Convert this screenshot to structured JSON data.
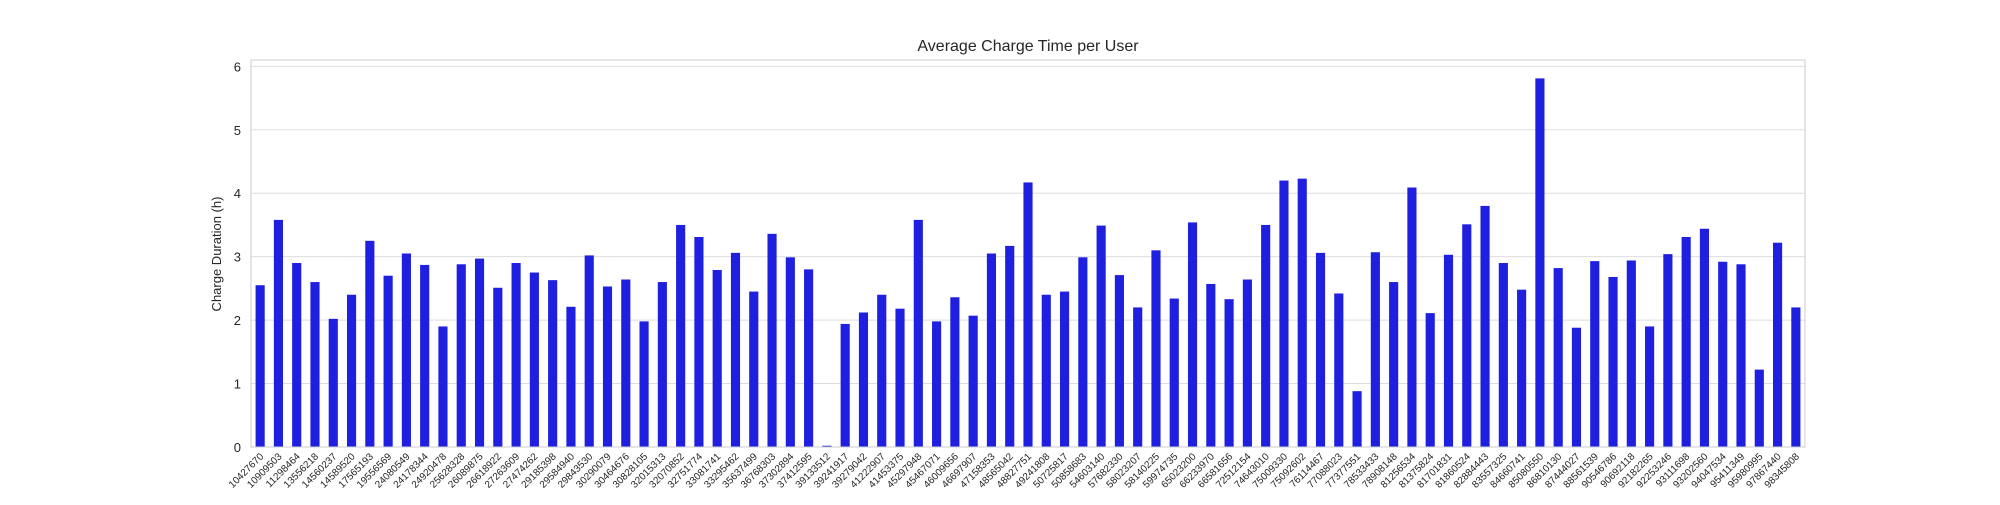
{
  "chart_data": {
    "type": "bar",
    "title": "Average Charge Time per User",
    "xlabel": "",
    "ylabel": "Charge Duration (h)",
    "ylim": [
      0,
      6.1
    ],
    "yticks": [
      0,
      1,
      2,
      3,
      4,
      5,
      6
    ],
    "bar_color": "#1f1fe0",
    "grid": true,
    "categories": [
      "10427670",
      "10909503",
      "11298464",
      "13556218",
      "14560237",
      "14589520",
      "17565193",
      "19556569",
      "24080549",
      "24178344",
      "24920478",
      "25628328",
      "26089875",
      "26618922",
      "27263609",
      "27474262",
      "29185398",
      "29584940",
      "29843530",
      "30290079",
      "30464676",
      "30828105",
      "32015313",
      "32070852",
      "32751774",
      "33081741",
      "33295462",
      "35637499",
      "36768303",
      "37302894",
      "37412595",
      "39133512",
      "39241917",
      "39279042",
      "41222907",
      "41453375",
      "45297948",
      "45467071",
      "46009656",
      "46697907",
      "47158353",
      "48565042",
      "48827751",
      "49241808",
      "50725817",
      "50858683",
      "54603140",
      "57682330",
      "58023207",
      "58140225",
      "59974735",
      "65023200",
      "66233970",
      "66581656",
      "72512154",
      "74643010",
      "75009330",
      "75092602",
      "76114467",
      "77088023",
      "77377551",
      "78533433",
      "78908148",
      "81256534",
      "81375824",
      "81701831",
      "81860524",
      "82884443",
      "83557325",
      "84660741",
      "85080550",
      "86810130",
      "87444027",
      "88561539",
      "90546786",
      "90692118",
      "92182265",
      "92253246",
      "93111698",
      "93202560",
      "94047534",
      "95411349",
      "95980995",
      "97867440",
      "98345808"
    ],
    "values": [
      2.55,
      3.58,
      2.9,
      2.6,
      2.02,
      2.4,
      3.25,
      2.7,
      3.05,
      2.87,
      1.9,
      2.88,
      2.97,
      2.51,
      2.9,
      2.75,
      2.63,
      2.21,
      3.02,
      2.53,
      2.64,
      1.98,
      2.6,
      3.5,
      3.31,
      2.79,
      3.06,
      2.45,
      3.36,
      2.99,
      2.8,
      0.02,
      1.94,
      2.12,
      2.4,
      2.18,
      3.58,
      1.98,
      2.36,
      2.07,
      3.05,
      3.17,
      4.17,
      2.4,
      2.45,
      2.99,
      3.49,
      2.71,
      2.2,
      3.1,
      2.34,
      3.54,
      2.57,
      2.33,
      2.64,
      3.5,
      4.2,
      4.23,
      3.06,
      2.42,
      0.88,
      3.07,
      2.6,
      4.09,
      2.11,
      3.03,
      3.51,
      3.8,
      2.9,
      2.48,
      5.81,
      2.82,
      1.88,
      2.93,
      2.68,
      2.94,
      1.9,
      3.04,
      3.31,
      3.44,
      2.92,
      2.88,
      1.22,
      3.22,
      2.2
    ]
  }
}
